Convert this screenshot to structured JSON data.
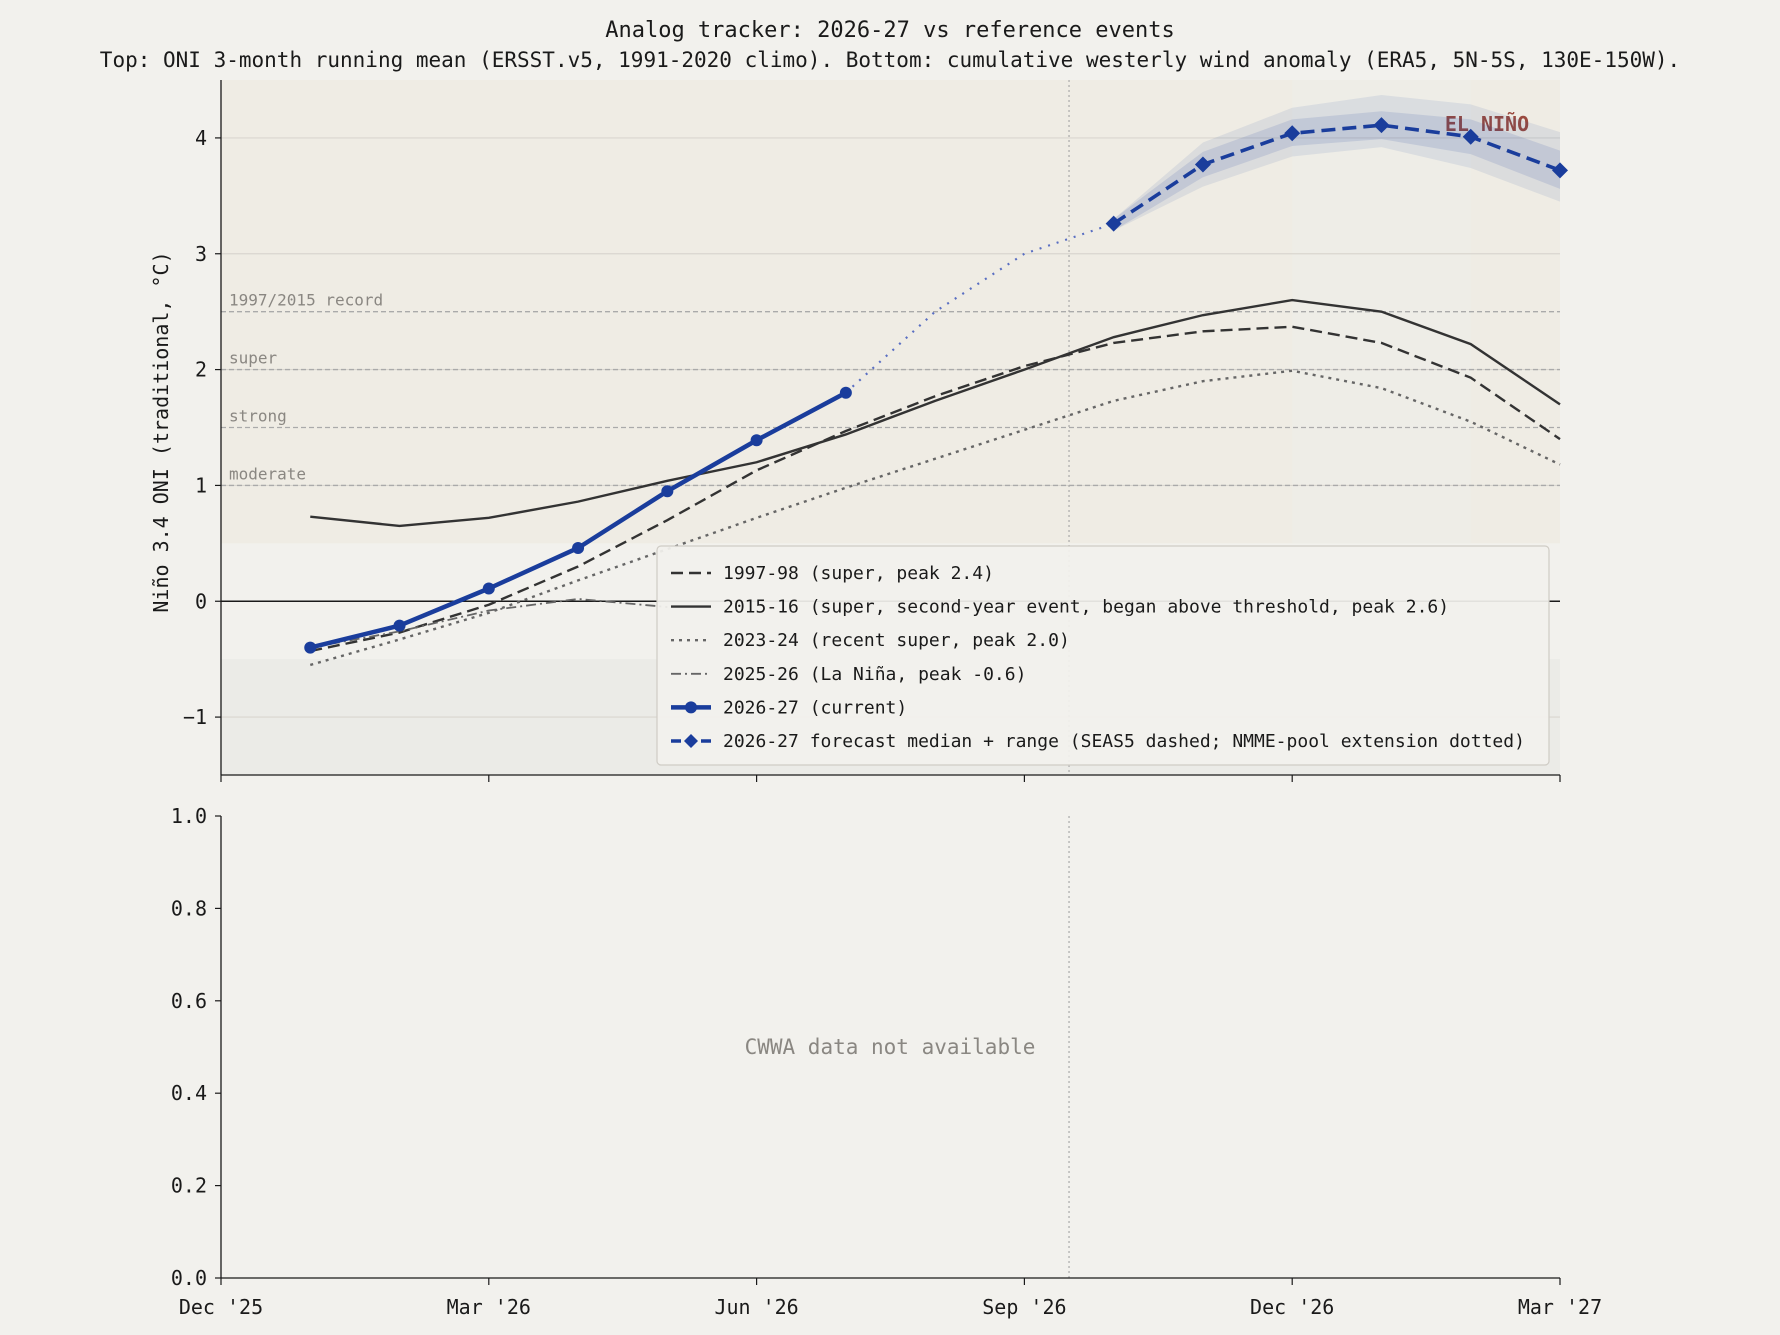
{
  "title": "Analog tracker: 2026-27 vs reference events",
  "subtitle": "Top: ONI 3-month running mean (ERSST.v5, 1991-2020 climo). Bottom: cumulative westerly wind anomaly (ERA5, 5N-5S, 130E-150W).",
  "colors": {
    "background": "#f2f1ed",
    "current": "#1a3d9c",
    "analog": "#333333",
    "analog_light": "#666666",
    "el_nino_label": "#9a4a3f",
    "threshold": "#aaaaaa",
    "band": "#1a3d9c"
  },
  "chart_data": [
    {
      "type": "line",
      "panel": "top",
      "ylabel": "Niño 3.4 ONI (traditional, °C)",
      "xlim": [
        "Dec '25",
        "Mar '27"
      ],
      "ylim": [
        -1.5,
        4.5
      ],
      "yticks": [
        -1,
        0,
        1,
        2,
        3,
        4
      ],
      "ytick_labels": [
        "−1",
        "0",
        "1",
        "2",
        "3",
        "4"
      ],
      "xticks": [
        "Dec '25",
        "Mar '26",
        "Jun '26",
        "Sep '26",
        "Dec '26",
        "Mar '27"
      ],
      "forecast_init": "Sep '26 (+0.5 mo)",
      "annotation": "EL NIÑO",
      "thresholds": [
        {
          "value": 2.5,
          "label": "1997/2015 record"
        },
        {
          "value": 2.0,
          "label": "super"
        },
        {
          "value": 1.5,
          "label": "strong"
        },
        {
          "value": 1.0,
          "label": "moderate"
        }
      ],
      "x_months": [
        1,
        2,
        3,
        4,
        5,
        6,
        7,
        8,
        9,
        10,
        11,
        12,
        13,
        14,
        15
      ],
      "series": [
        {
          "name": "1997-98 (super, peak 2.4)",
          "style": "dashed",
          "values": [
            -0.43,
            -0.27,
            -0.03,
            0.3,
            0.7,
            1.13,
            1.47,
            1.77,
            2.03,
            2.23,
            2.33,
            2.37,
            2.23,
            1.93,
            1.4
          ]
        },
        {
          "name": "2015-16 (super, second-year event, began above threshold, peak 2.6)",
          "style": "solid",
          "values": [
            0.73,
            0.65,
            0.72,
            0.86,
            1.04,
            1.2,
            1.44,
            1.73,
            2.0,
            2.28,
            2.47,
            2.6,
            2.5,
            2.22,
            1.7
          ]
        },
        {
          "name": "2023-24 (recent super, peak 2.0)",
          "style": "dotted",
          "values": [
            -0.55,
            -0.33,
            -0.1,
            0.18,
            0.45,
            0.72,
            0.98,
            1.23,
            1.48,
            1.73,
            1.9,
            1.99,
            1.84,
            1.55,
            1.18
          ]
        },
        {
          "name": "2025-26 (La Niña, peak -0.6)",
          "style": "dashdot",
          "values": [
            -0.4,
            -0.26,
            -0.08,
            0.02,
            -0.05
          ]
        },
        {
          "name": "2026-27 (current)",
          "style": "current",
          "values": [
            -0.4,
            -0.21,
            0.11,
            0.46,
            0.95,
            1.39,
            1.8
          ]
        },
        {
          "name": "2026-27 forecast median + range (SEAS5 dashed; NMME-pool extension dotted)",
          "style": "forecast",
          "x": [
            10,
            11,
            12,
            13,
            14,
            15
          ],
          "values": [
            3.26,
            3.77,
            4.04,
            4.11,
            4.01,
            3.72
          ],
          "inner_low": [
            3.2,
            3.66,
            3.93,
            3.99,
            3.86,
            3.56
          ],
          "inner_high": [
            3.3,
            3.88,
            4.16,
            4.23,
            4.16,
            3.89
          ],
          "outer_low": [
            3.2,
            3.58,
            3.84,
            3.92,
            3.74,
            3.45
          ],
          "outer_high": [
            3.3,
            3.96,
            4.26,
            4.37,
            4.29,
            4.05
          ]
        },
        {
          "name": "NMME-pool extension",
          "style": "extension",
          "x": [
            7,
            8,
            9,
            10
          ],
          "values": [
            1.8,
            2.5,
            3.0,
            3.26
          ]
        }
      ],
      "legend": {
        "position": "lower-right",
        "entries": [
          "1997-98 (super, peak 2.4)",
          "2015-16 (super, second-year event, began above threshold, peak 2.6)",
          "2023-24 (recent super, peak 2.0)",
          "2025-26 (La Niña, peak -0.6)",
          "2026-27 (current)",
          "2026-27 forecast median + range (SEAS5 dashed; NMME-pool extension dotted)"
        ]
      }
    },
    {
      "type": "line",
      "panel": "bottom",
      "ylim": [
        0.0,
        1.0
      ],
      "yticks": [
        "0.0",
        "0.2",
        "0.4",
        "0.6",
        "0.8",
        "1.0"
      ],
      "xticks": [
        "Dec '25",
        "Mar '26",
        "Jun '26",
        "Sep '26",
        "Dec '26",
        "Mar '27"
      ],
      "message": "CWWA data not available"
    }
  ]
}
